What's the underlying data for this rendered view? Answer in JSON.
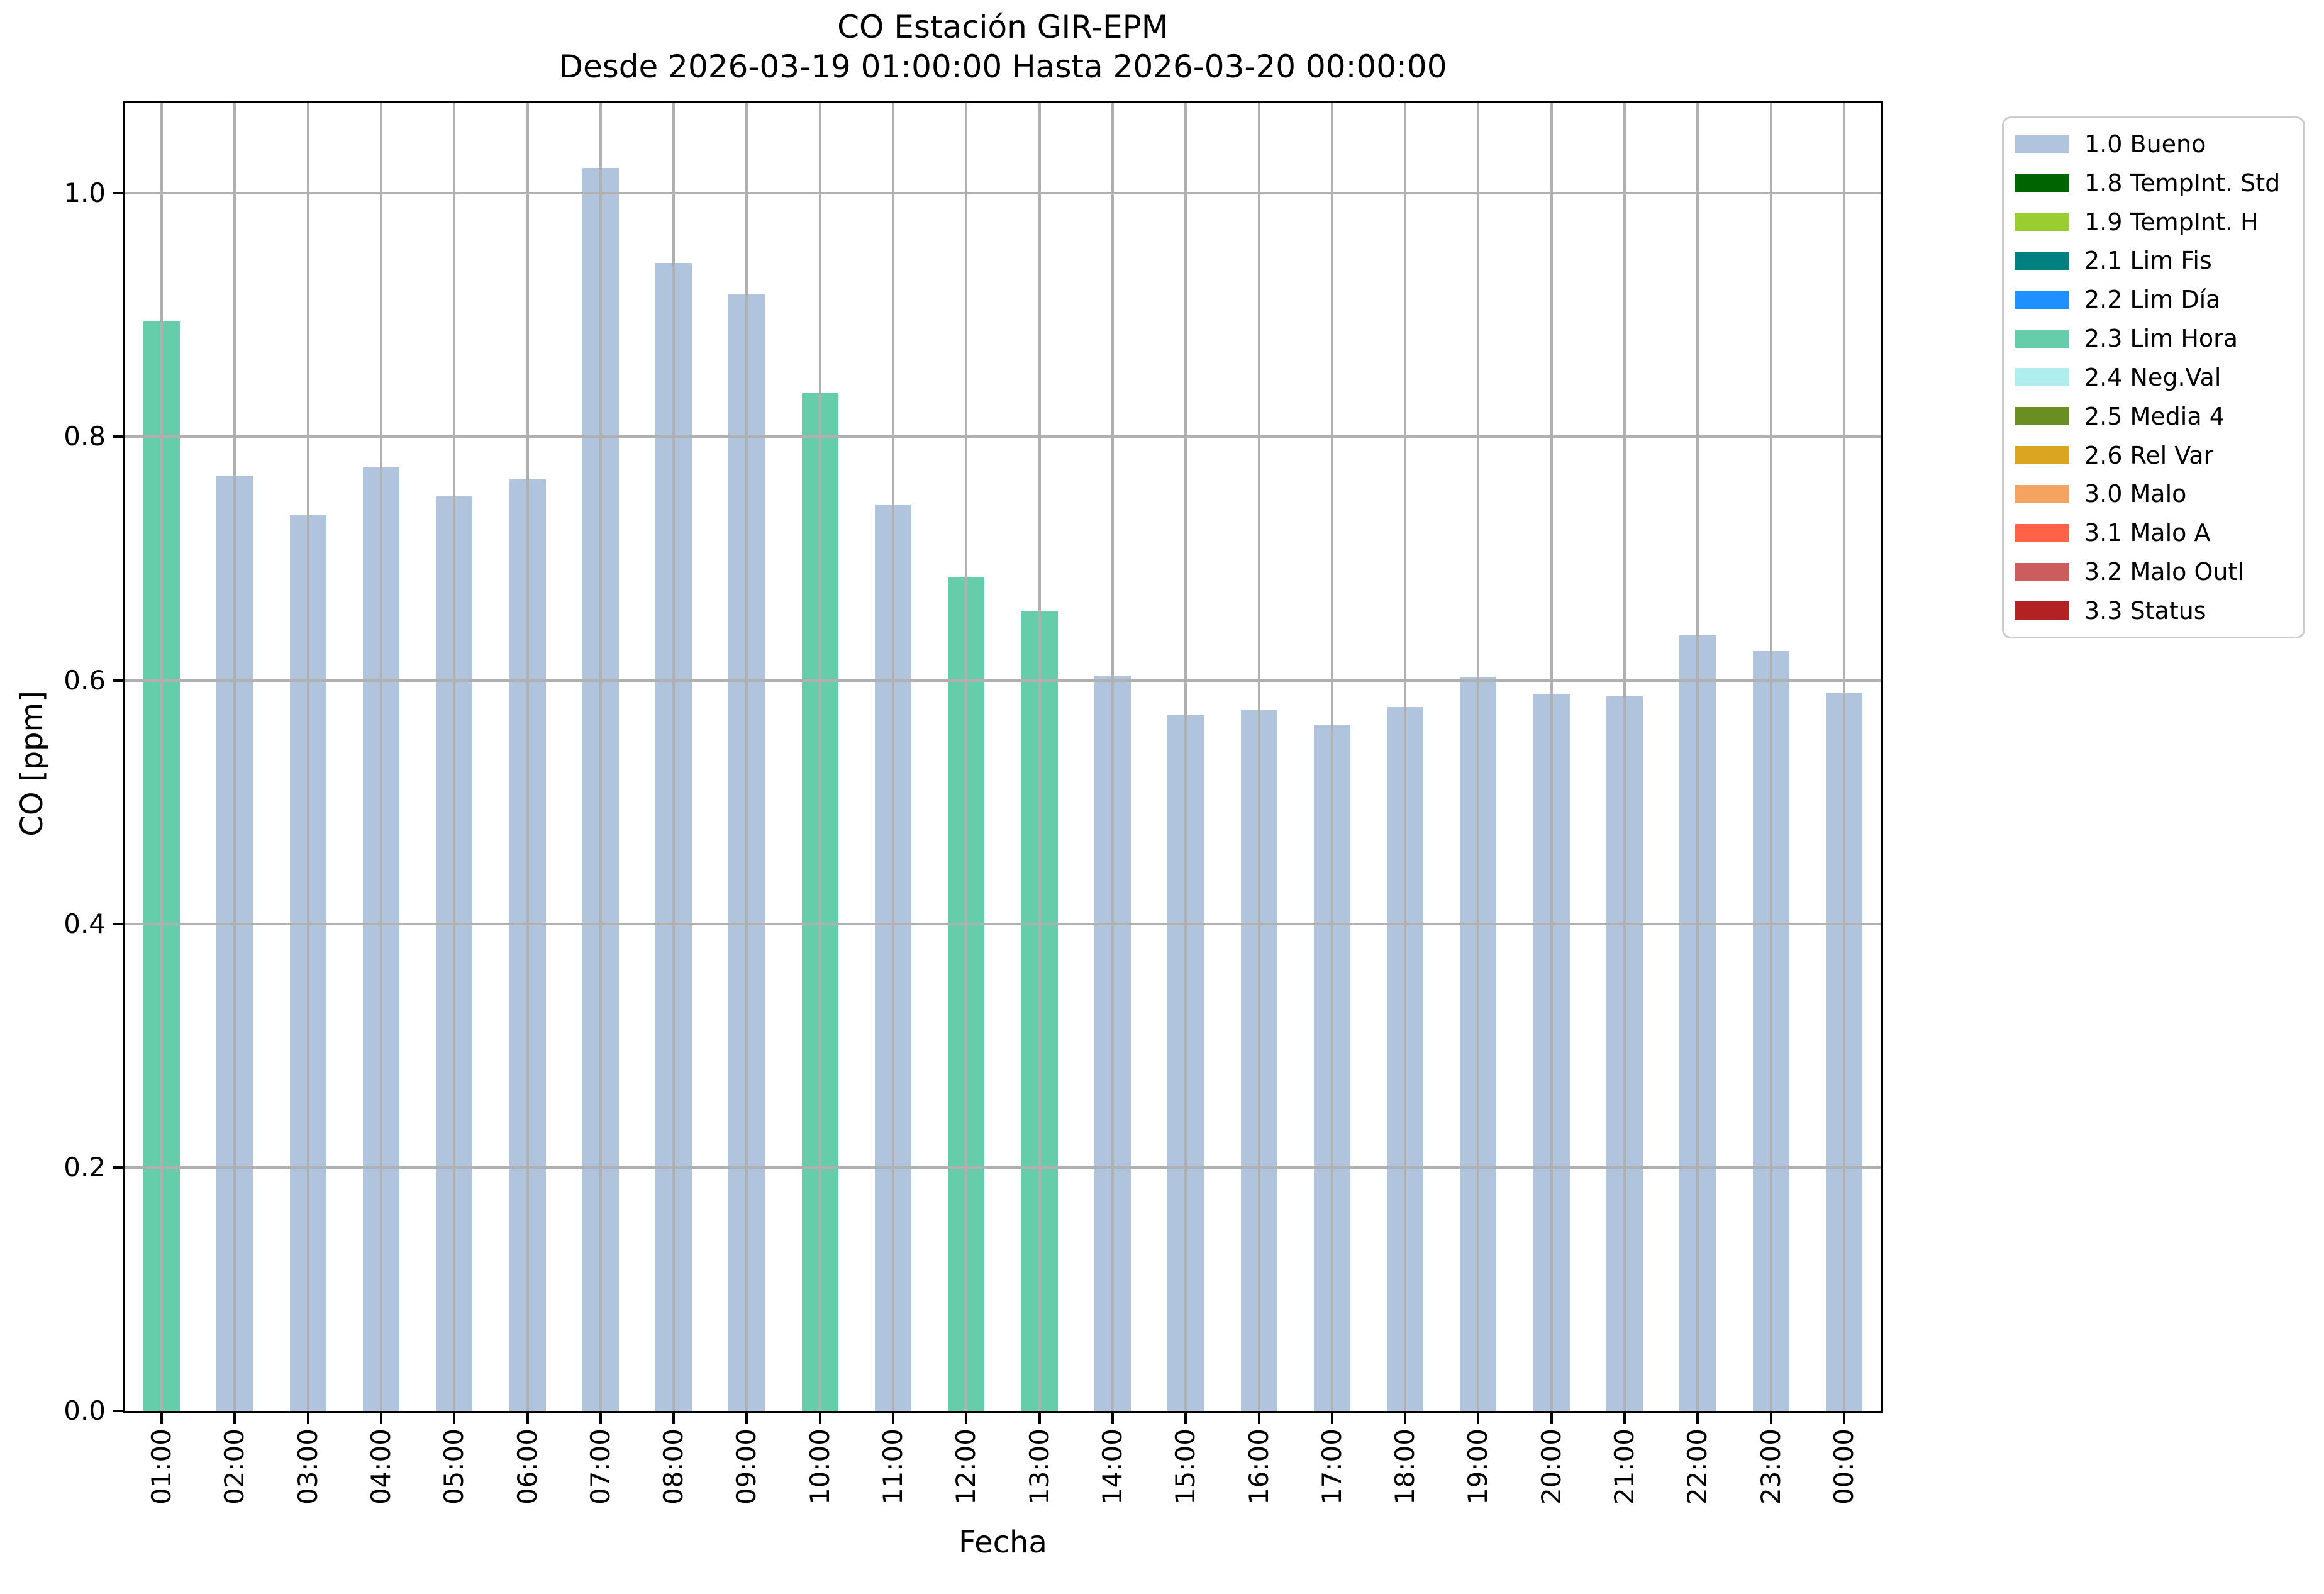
{
  "chart_data": {
    "type": "bar",
    "title": "CO Estación GIR-EPM",
    "subtitle": "Desde 2026-03-19 01:00:00 Hasta 2026-03-20 00:00:00",
    "xlabel": "Fecha",
    "ylabel": "CO [ppm]",
    "ylim": [
      0,
      1.074
    ],
    "grid": true,
    "legend_position": "outside upper right",
    "yticks": [
      {
        "value": 0.0,
        "label": "0.0"
      },
      {
        "value": 0.2,
        "label": "0.2"
      },
      {
        "value": 0.4,
        "label": "0.4"
      },
      {
        "value": 0.6,
        "label": "0.6"
      },
      {
        "value": 0.8,
        "label": "0.8"
      },
      {
        "value": 1.0,
        "label": "1.0"
      }
    ],
    "categories": [
      "01:00",
      "02:00",
      "03:00",
      "04:00",
      "05:00",
      "06:00",
      "07:00",
      "08:00",
      "09:00",
      "10:00",
      "11:00",
      "12:00",
      "13:00",
      "14:00",
      "15:00",
      "16:00",
      "17:00",
      "18:00",
      "19:00",
      "20:00",
      "21:00",
      "22:00",
      "23:00",
      "00:00"
    ],
    "values": [
      0.895,
      0.768,
      0.736,
      0.775,
      0.751,
      0.765,
      1.021,
      0.943,
      0.917,
      0.836,
      0.744,
      0.685,
      0.657,
      0.604,
      0.572,
      0.576,
      0.563,
      0.578,
      0.603,
      0.589,
      0.587,
      0.637,
      0.624,
      0.59
    ],
    "bar_status": [
      "2.3 Lim Hora",
      "1.0 Bueno",
      "1.0 Bueno",
      "1.0 Bueno",
      "1.0 Bueno",
      "1.0 Bueno",
      "1.0 Bueno",
      "1.0 Bueno",
      "1.0 Bueno",
      "2.3 Lim Hora",
      "1.0 Bueno",
      "2.3 Lim Hora",
      "2.3 Lim Hora",
      "1.0 Bueno",
      "1.0 Bueno",
      "1.0 Bueno",
      "1.0 Bueno",
      "1.0 Bueno",
      "1.0 Bueno",
      "1.0 Bueno",
      "1.0 Bueno",
      "1.0 Bueno",
      "1.0 Bueno",
      "1.0 Bueno"
    ],
    "status_colors": {
      "1.0 Bueno": "#b0c4de",
      "2.3 Lim Hora": "#66cdaa"
    },
    "legend": [
      {
        "label": "1.0 Bueno",
        "color": "#b0c4de"
      },
      {
        "label": "1.8 TempInt. Std",
        "color": "#006400"
      },
      {
        "label": "1.9 TempInt. H",
        "color": "#9acd32"
      },
      {
        "label": "2.1 Lim Fis",
        "color": "#008080"
      },
      {
        "label": "2.2 Lim Día",
        "color": "#1e90ff"
      },
      {
        "label": "2.3 Lim Hora",
        "color": "#66cdaa"
      },
      {
        "label": "2.4 Neg.Val",
        "color": "#afeeee"
      },
      {
        "label": "2.5 Media 4",
        "color": "#6b8e23"
      },
      {
        "label": "2.6 Rel Var",
        "color": "#daa520"
      },
      {
        "label": "3.0 Malo",
        "color": "#f4a460"
      },
      {
        "label": "3.1 Malo A",
        "color": "#ff6347"
      },
      {
        "label": "3.2 Malo Outl",
        "color": "#cd5c5c"
      },
      {
        "label": "3.3 Status",
        "color": "#b22222"
      }
    ],
    "colors": {
      "grid": "#b0b0b0",
      "spine": "#000000",
      "background": "#ffffff",
      "legend_border": "#cccccc"
    }
  }
}
